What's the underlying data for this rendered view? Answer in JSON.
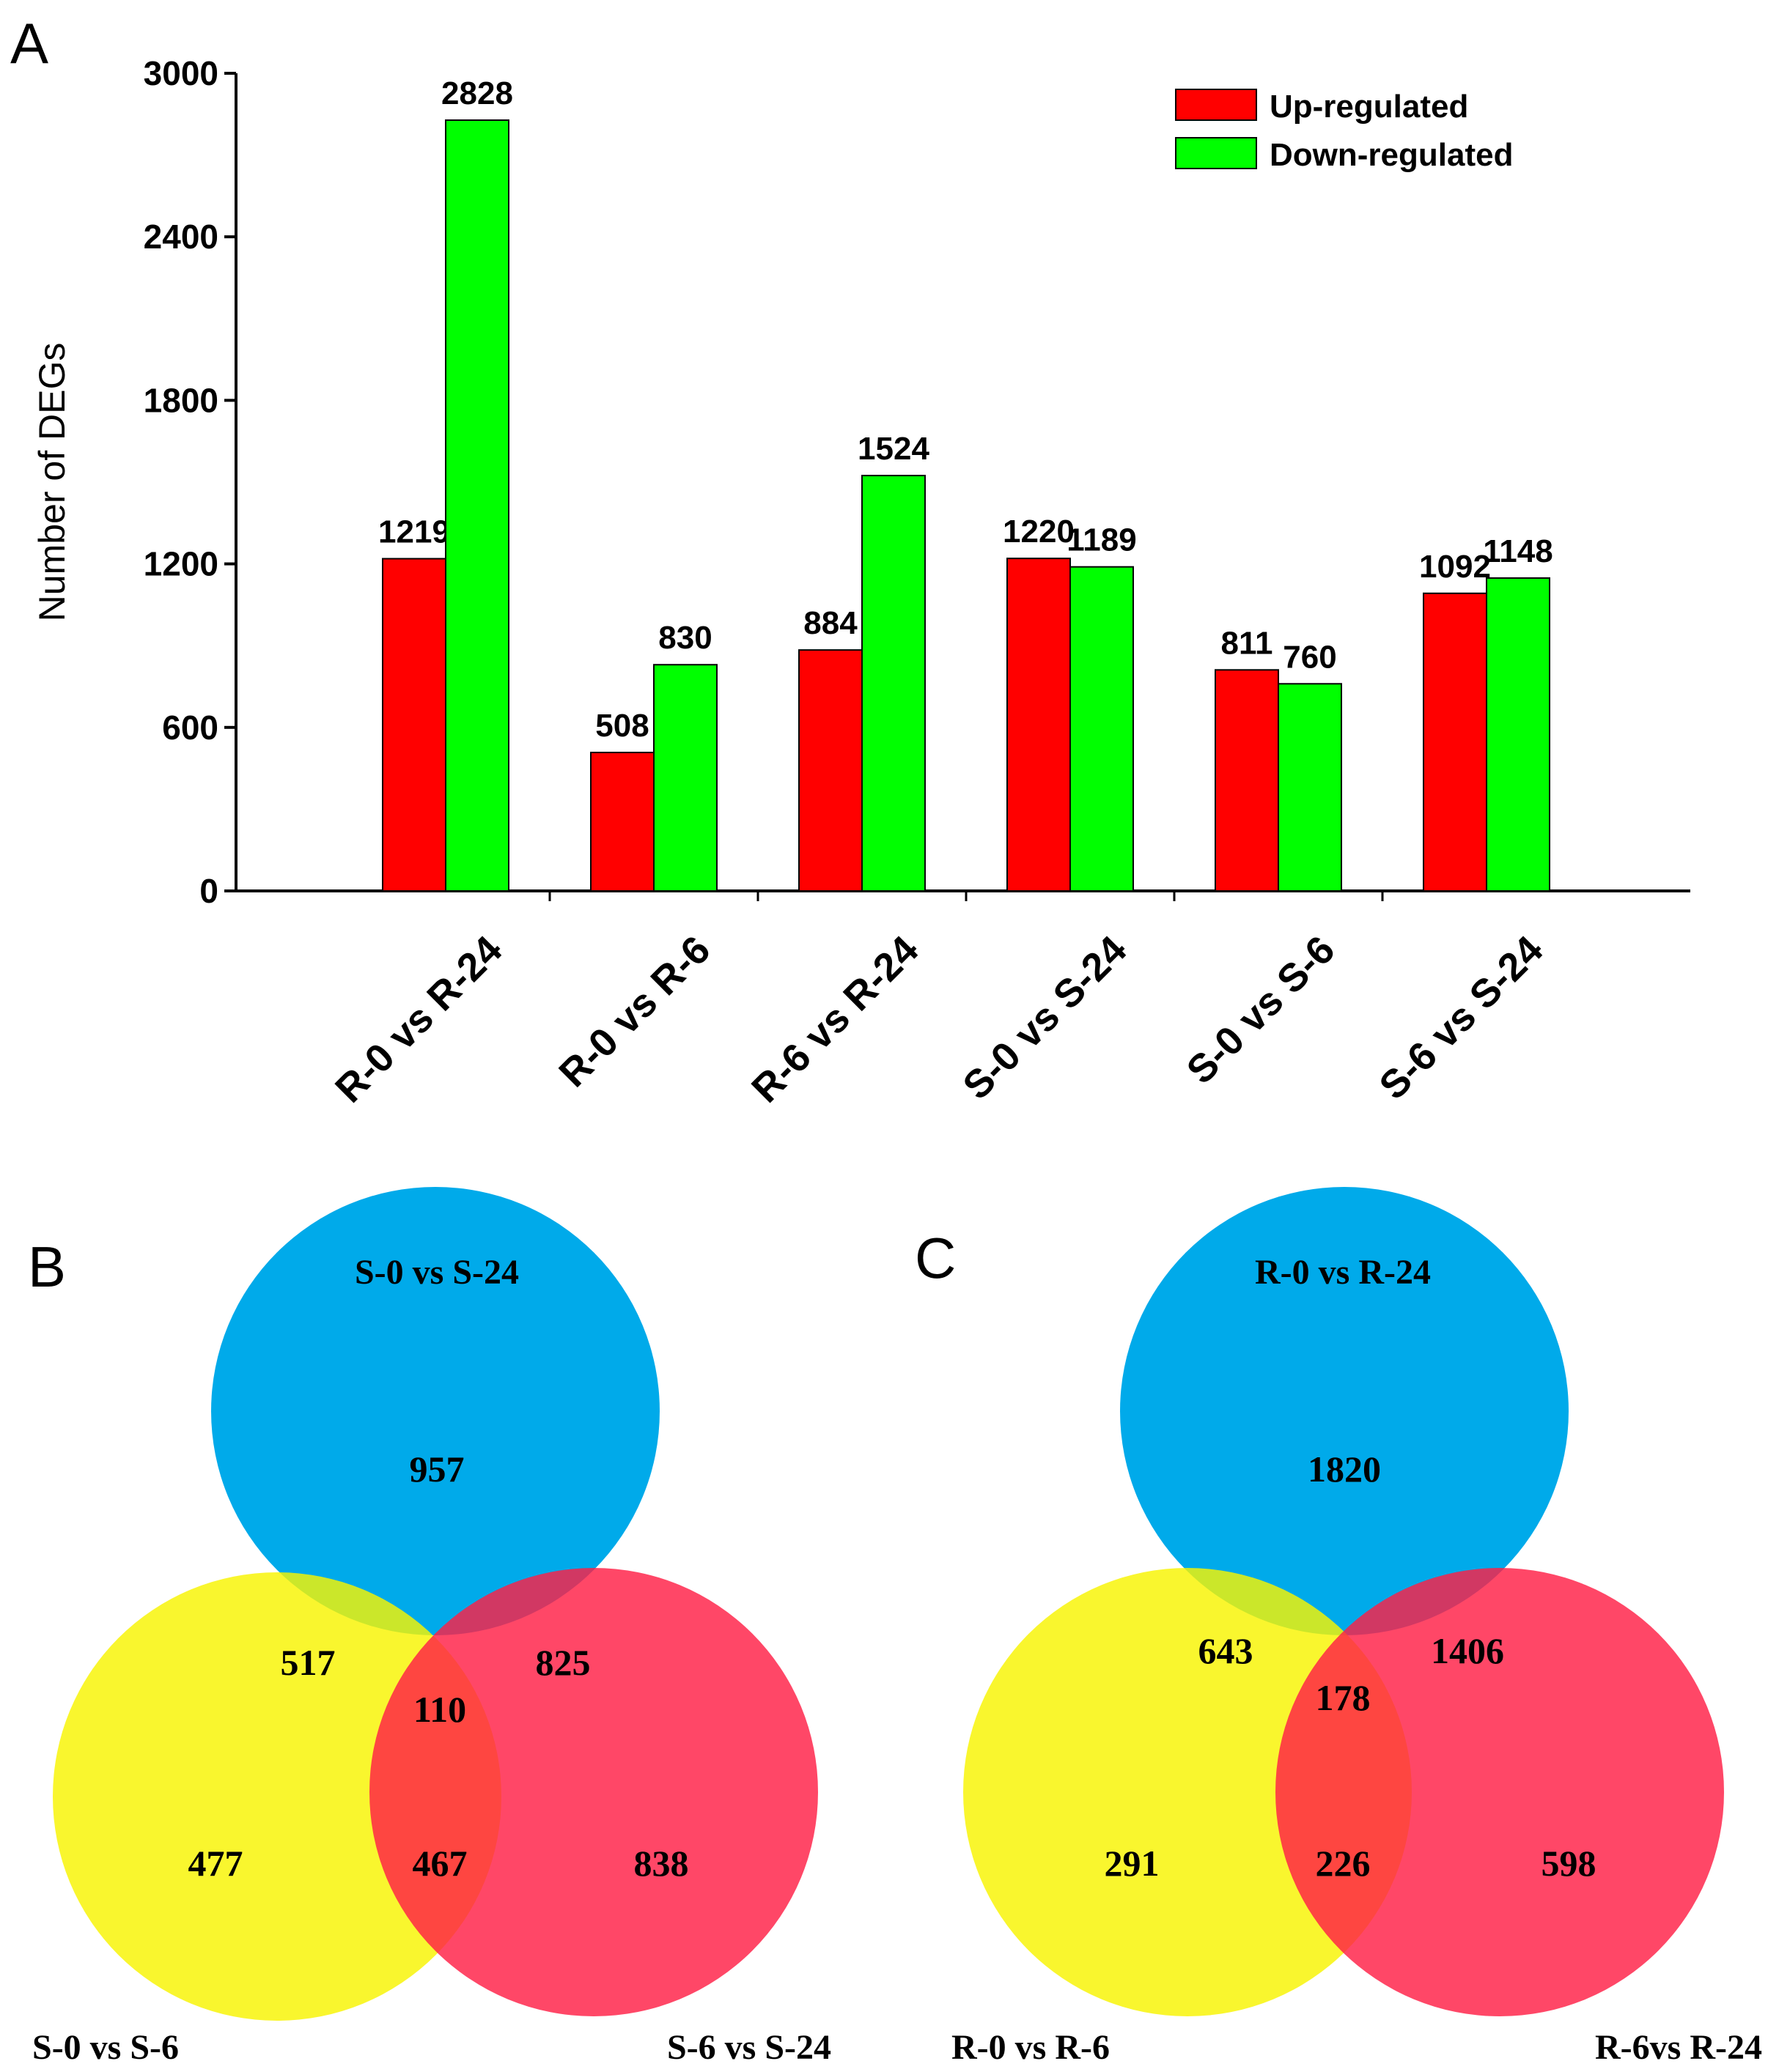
{
  "panels": {
    "a": "A",
    "b": "B",
    "c": "C"
  },
  "colors": {
    "up": "#ff0000",
    "down": "#00ff00",
    "venn_blue": "#00aaea",
    "venn_yellow": "#f8f400",
    "venn_red": "#ff1e46"
  },
  "chart_data": [
    {
      "type": "bar",
      "title": "",
      "xlabel": "",
      "ylabel": "Number of DEGs",
      "ylim": [
        0,
        3000
      ],
      "yticks": [
        "0",
        "600",
        "1200",
        "1800",
        "2400",
        "3000"
      ],
      "categories": [
        "R-0 vs R-24",
        "R-0 vs R-6",
        "R-6 vs R-24",
        "S-0 vs S-24",
        "S-0 vs S-6",
        "S-6 vs S-24"
      ],
      "series": [
        {
          "name": "Up-regulated",
          "values": [
            1219,
            508,
            884,
            1220,
            811,
            1092
          ]
        },
        {
          "name": "Down-regulated",
          "values": [
            2828,
            830,
            1524,
            1189,
            760,
            1148
          ]
        }
      ],
      "legend": {
        "position": "top-right",
        "entries": [
          "Up-regulated",
          "Down-regulated"
        ]
      }
    }
  ],
  "venn_b": {
    "top_label": "S-0 vs S-24",
    "left_label": "S-0 vs S-6",
    "right_label": "S-6 vs S-24",
    "only_top": "957",
    "only_left": "477",
    "only_right": "838",
    "top_left": "517",
    "top_right": "825",
    "left_right": "467",
    "center": "110"
  },
  "venn_c": {
    "top_label": "R-0 vs R-24",
    "left_label": "R-0 vs R-6",
    "right_label": "R-6vs R-24",
    "only_top": "1820",
    "only_left": "291",
    "only_right": "598",
    "top_left": "643",
    "top_right": "1406",
    "left_right": "226",
    "center": "178"
  }
}
